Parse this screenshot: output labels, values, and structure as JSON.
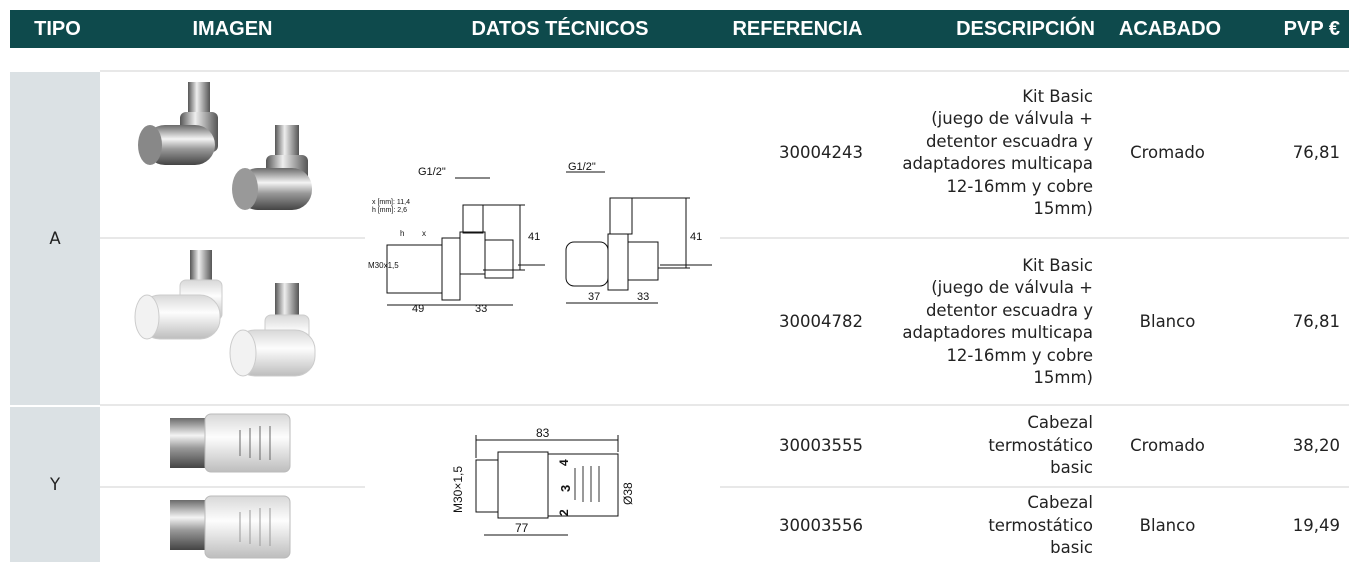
{
  "table": {
    "columns": [
      "TIPO",
      "IMAGEN",
      "DATOS TÉCNICOS",
      "REFERENCIA",
      "DESCRIPCIÓN",
      "ACABADO",
      "PVP €"
    ],
    "groups": [
      {
        "tipo": "A",
        "drawing_labels": [
          "G1/2\"",
          "x [mm]: 11,4",
          "h [mm]: 2,6",
          "h",
          "x",
          "M30x1,5",
          "41",
          "49",
          "33",
          "G1/2\"",
          "41",
          "37",
          "33"
        ],
        "rows": [
          {
            "referencia": "30004243",
            "descripcion": [
              "Kit Basic",
              "(juego de válvula +",
              "detentor escuadra y",
              "adaptadores multicapa",
              "12-16mm y cobre",
              "15mm)"
            ],
            "acabado": "Cromado",
            "pvp": "76,81"
          },
          {
            "referencia": "30004782",
            "descripcion": [
              "Kit Basic",
              "(juego de válvula +",
              "detentor escuadra y",
              "adaptadores multicapa",
              "12-16mm y cobre",
              "15mm)"
            ],
            "acabado": "Blanco",
            "pvp": "76,81"
          }
        ]
      },
      {
        "tipo": "Y",
        "drawing_labels": [
          "83",
          "M30×1,5",
          "Ø38",
          "77",
          "4",
          "3",
          "2"
        ],
        "rows": [
          {
            "referencia": "30003555",
            "descripcion": [
              "Cabezal",
              "termostático",
              "basic"
            ],
            "acabado": "Cromado",
            "pvp": "38,20"
          },
          {
            "referencia": "30003556",
            "descripcion": [
              "Cabezal",
              "termostático",
              "basic"
            ],
            "acabado": "Blanco",
            "pvp": "19,49"
          }
        ]
      }
    ]
  }
}
